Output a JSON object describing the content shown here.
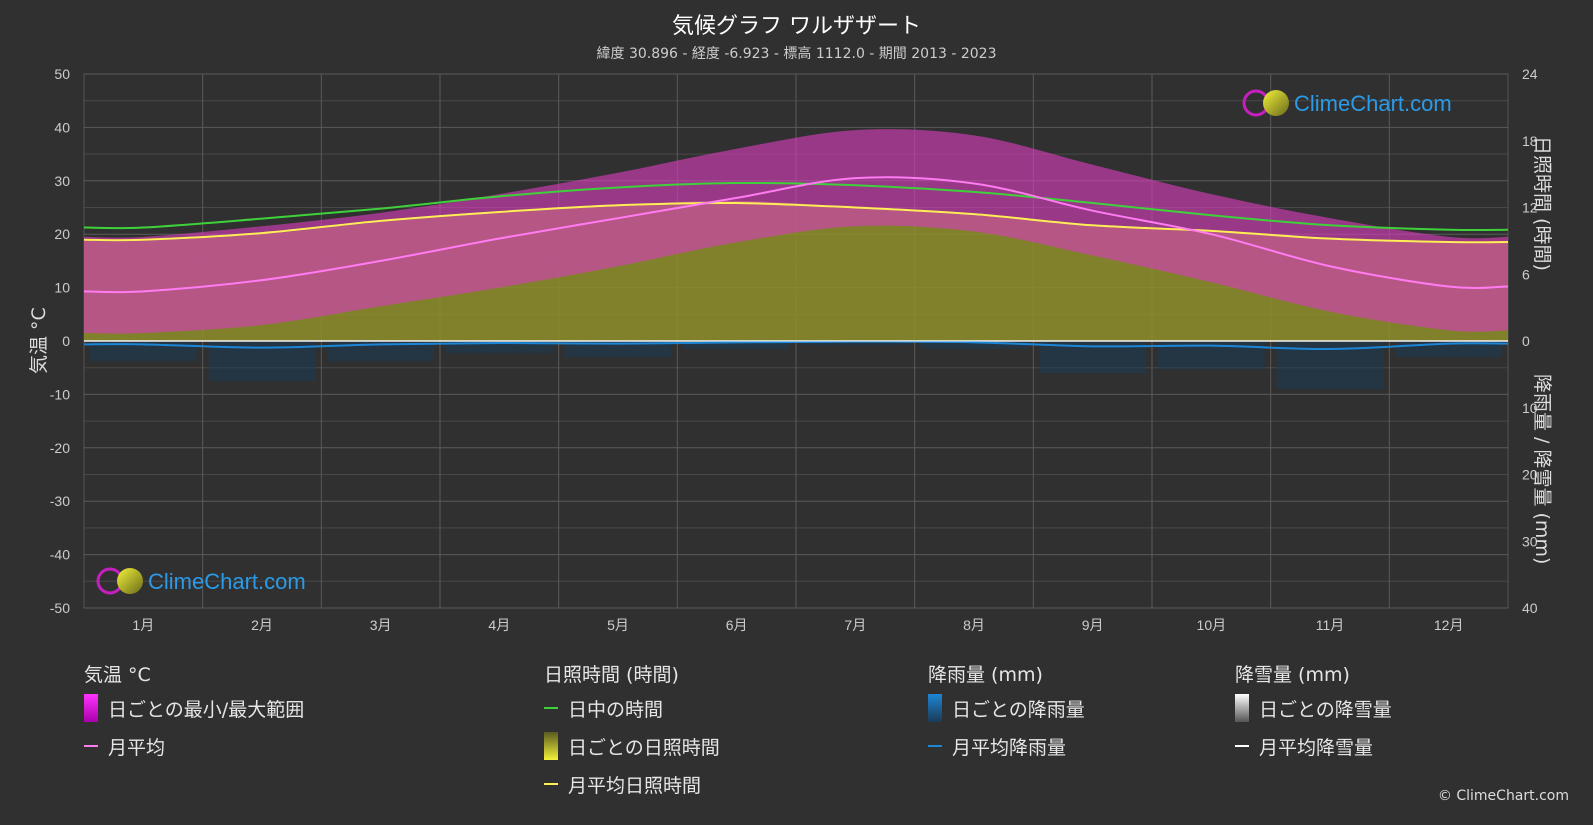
{
  "header": {
    "title": "気候グラフ ワルザザート",
    "subtitle": "緯度 30.896 - 経度 -6.923 - 標高 1112.0 - 期間 2013 - 2023"
  },
  "axes": {
    "left_title": "気温 °C",
    "right_top_title": "日照時間 (時間)",
    "right_bottom_title": "降雨量 / 降雪量 (mm)"
  },
  "logo_text": "ClimeChart.com",
  "copyright": "© ClimeChart.com",
  "legend": {
    "temperature": {
      "heading": "気温 °C",
      "range": "日ごとの最小/最大範囲",
      "mean": "月平均"
    },
    "sunshine": {
      "heading": "日照時間 (時間)",
      "daylight": "日中の時間",
      "daily": "日ごとの日照時間",
      "mean": "月平均日照時間"
    },
    "rain": {
      "heading": "降雨量 (mm)",
      "daily": "日ごとの降雨量",
      "mean": "月平均降雨量"
    },
    "snow": {
      "heading": "降雪量 (mm)",
      "daily": "日ごとの降雪量",
      "mean": "月平均降雪量"
    }
  },
  "colors": {
    "background": "#303030",
    "temp_range": "#c61fbf",
    "temp_mean": "#ff7bf2",
    "daylight": "#3fd13a",
    "sunshine_fill": "#9b9b2c",
    "sunshine_mean": "#ffee55",
    "rain": "#1c86d6",
    "snow": "#ffffff"
  },
  "chart_data": {
    "type": "line",
    "x": [
      "1月",
      "2月",
      "3月",
      "4月",
      "5月",
      "6月",
      "7月",
      "8月",
      "9月",
      "10月",
      "11月",
      "12月"
    ],
    "left_ticks": [
      50,
      40,
      30,
      20,
      10,
      0,
      -10,
      -20,
      -30,
      -40,
      -50
    ],
    "right_sun_ticks": [
      24,
      18,
      12,
      6,
      0
    ],
    "right_precip_ticks": [
      10,
      20,
      30,
      40
    ],
    "ylim_temperature": [
      -50,
      50
    ],
    "ylim_sunshine": [
      0,
      24
    ],
    "ylim_precipitation": [
      0,
      40
    ],
    "series": {
      "temp_mean": [
        9.3,
        11.4,
        15.0,
        19.2,
        23.0,
        26.8,
        30.5,
        29.5,
        24.4,
        20.0,
        14.0,
        10.2
      ],
      "temp_max": [
        19.5,
        21.5,
        24.0,
        27.5,
        31.5,
        36.0,
        39.5,
        38.5,
        33.0,
        27.5,
        23.0,
        19.5
      ],
      "temp_min": [
        1.5,
        3.0,
        6.5,
        10.0,
        14.0,
        18.5,
        21.5,
        20.5,
        16.0,
        11.0,
        5.5,
        2.0
      ],
      "daylight_hours": [
        10.2,
        11.0,
        11.9,
        13.0,
        13.8,
        14.2,
        14.0,
        13.4,
        12.4,
        11.3,
        10.4,
        10.0
      ],
      "sunshine_daily": [
        9.0,
        9.6,
        10.7,
        11.6,
        12.2,
        12.6,
        12.0,
        11.3,
        10.4,
        9.8,
        9.2,
        8.9
      ],
      "sunshine_mean": [
        9.1,
        9.7,
        10.8,
        11.6,
        12.2,
        12.4,
        12.0,
        11.4,
        10.4,
        9.9,
        9.2,
        8.9
      ],
      "rain_mean": [
        0.5,
        1.0,
        0.5,
        0.3,
        0.4,
        0.2,
        0.1,
        0.2,
        0.8,
        0.7,
        1.2,
        0.4
      ],
      "snow_mean": [
        0,
        0,
        0,
        0,
        0,
        0,
        0,
        0,
        0,
        0,
        0,
        0
      ]
    },
    "grid": true
  }
}
